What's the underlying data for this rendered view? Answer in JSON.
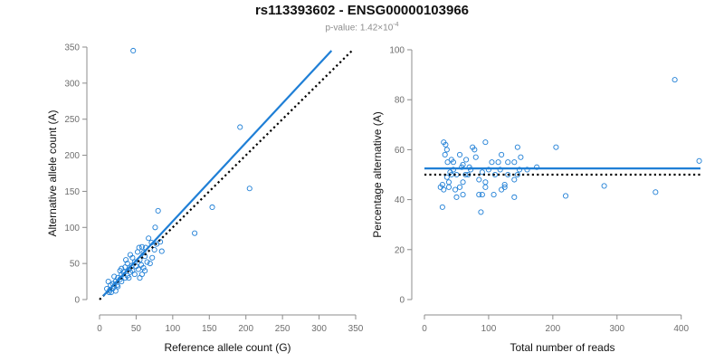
{
  "header": {
    "title": "rs113393602 - ENSG00000103966",
    "pvalue_prefix": "p-value: 1.42×10",
    "pvalue_exponent": "-4"
  },
  "colors": {
    "accent": "#1f7fd6",
    "reference_line": "#000000",
    "axis": "#8c8c8c"
  },
  "chart_data": [
    {
      "type": "scatter",
      "xlabel": "Reference allele count (G)",
      "ylabel": "Alternative allele count (A)",
      "xlim": [
        0,
        350
      ],
      "ylim": [
        0,
        350
      ],
      "xticks": [
        0,
        50,
        100,
        150,
        200,
        250,
        300,
        350
      ],
      "yticks": [
        0,
        50,
        100,
        150,
        200,
        250,
        300,
        350
      ],
      "grid": false,
      "fit_line": {
        "style": "solid",
        "from": [
          5,
          5
        ],
        "to": [
          317,
          345
        ]
      },
      "reference_line": {
        "style": "dotted",
        "from": [
          0,
          0
        ],
        "to": [
          345,
          345
        ]
      },
      "points": [
        [
          46,
          345
        ],
        [
          192,
          239
        ],
        [
          205,
          154
        ],
        [
          154,
          128
        ],
        [
          130,
          92
        ],
        [
          80,
          123
        ],
        [
          76,
          100
        ],
        [
          67,
          85
        ],
        [
          83,
          80
        ],
        [
          71,
          79
        ],
        [
          78,
          77
        ],
        [
          58,
          73
        ],
        [
          54,
          72
        ],
        [
          63,
          72
        ],
        [
          75,
          69
        ],
        [
          60,
          65
        ],
        [
          52,
          66
        ],
        [
          62,
          60
        ],
        [
          72,
          58
        ],
        [
          55,
          55
        ],
        [
          48,
          52
        ],
        [
          65,
          52
        ],
        [
          69,
          50
        ],
        [
          57,
          48
        ],
        [
          50,
          46
        ],
        [
          44,
          47
        ],
        [
          38,
          50
        ],
        [
          60,
          44
        ],
        [
          53,
          42
        ],
        [
          62,
          40
        ],
        [
          45,
          40
        ],
        [
          40,
          42
        ],
        [
          35,
          45
        ],
        [
          30,
          43
        ],
        [
          42,
          38
        ],
        [
          33,
          38
        ],
        [
          28,
          40
        ],
        [
          48,
          35
        ],
        [
          55,
          30
        ],
        [
          38,
          33
        ],
        [
          30,
          35
        ],
        [
          25,
          30
        ],
        [
          35,
          30
        ],
        [
          20,
          32
        ],
        [
          28,
          28
        ],
        [
          22,
          25
        ],
        [
          30,
          25
        ],
        [
          18,
          22
        ],
        [
          24,
          20
        ],
        [
          15,
          20
        ],
        [
          20,
          18
        ],
        [
          12,
          25
        ],
        [
          18,
          15
        ],
        [
          14,
          13
        ],
        [
          10,
          15
        ],
        [
          22,
          12
        ],
        [
          16,
          10
        ],
        [
          25,
          18
        ],
        [
          40,
          30
        ],
        [
          36,
          55
        ],
        [
          58,
          35
        ],
        [
          45,
          58
        ],
        [
          85,
          67
        ],
        [
          13,
          10
        ],
        [
          42,
          62
        ]
      ]
    },
    {
      "type": "scatter",
      "xlabel": "Total number of reads",
      "ylabel": "Percentage alternative (A)",
      "xlim": [
        0,
        430
      ],
      "ylim": [
        0,
        100
      ],
      "xticks": [
        0,
        100,
        200,
        300,
        400
      ],
      "yticks": [
        0,
        20,
        40,
        60,
        80,
        100
      ],
      "grid": false,
      "fit_line": {
        "style": "solid",
        "from": [
          0,
          52.5
        ],
        "to": [
          430,
          52.5
        ]
      },
      "reference_line": {
        "style": "dotted",
        "from": [
          0,
          50
        ],
        "to": [
          430,
          50
        ]
      },
      "points": [
        [
          390,
          88
        ],
        [
          428,
          55.5
        ],
        [
          360,
          43
        ],
        [
          280,
          45.5
        ],
        [
          220,
          41.5
        ],
        [
          205,
          61
        ],
        [
          175,
          53
        ],
        [
          160,
          52
        ],
        [
          150,
          57
        ],
        [
          145,
          61
        ],
        [
          140,
          55
        ],
        [
          148,
          52
        ],
        [
          145,
          50
        ],
        [
          140,
          48
        ],
        [
          130,
          55
        ],
        [
          130,
          50
        ],
        [
          125,
          46
        ],
        [
          125,
          45
        ],
        [
          120,
          58
        ],
        [
          118,
          52
        ],
        [
          110,
          50
        ],
        [
          115,
          55
        ],
        [
          105,
          55
        ],
        [
          100,
          52
        ],
        [
          95,
          63
        ],
        [
          95,
          47
        ],
        [
          95,
          45
        ],
        [
          90,
          42
        ],
        [
          90,
          51
        ],
        [
          88,
          35
        ],
        [
          85,
          42
        ],
        [
          85,
          48
        ],
        [
          80,
          57
        ],
        [
          78,
          60
        ],
        [
          75,
          61
        ],
        [
          72,
          52
        ],
        [
          70,
          53
        ],
        [
          68,
          50
        ],
        [
          65,
          56
        ],
        [
          64,
          50
        ],
        [
          60,
          54
        ],
        [
          60,
          47
        ],
        [
          60,
          42
        ],
        [
          58,
          53
        ],
        [
          55,
          58
        ],
        [
          55,
          45
        ],
        [
          50,
          50
        ],
        [
          50,
          41
        ],
        [
          48,
          44
        ],
        [
          45,
          55
        ],
        [
          45,
          52
        ],
        [
          42,
          56
        ],
        [
          42,
          50
        ],
        [
          40,
          51
        ],
        [
          38,
          47
        ],
        [
          38,
          45
        ],
        [
          36,
          55
        ],
        [
          35,
          49
        ],
        [
          35,
          60
        ],
        [
          33,
          62
        ],
        [
          32,
          58
        ],
        [
          30,
          63
        ],
        [
          30,
          44
        ],
        [
          28,
          37
        ],
        [
          28,
          46
        ],
        [
          25,
          45
        ],
        [
          140,
          41
        ],
        [
          120,
          44
        ],
        [
          108,
          42
        ]
      ]
    }
  ]
}
